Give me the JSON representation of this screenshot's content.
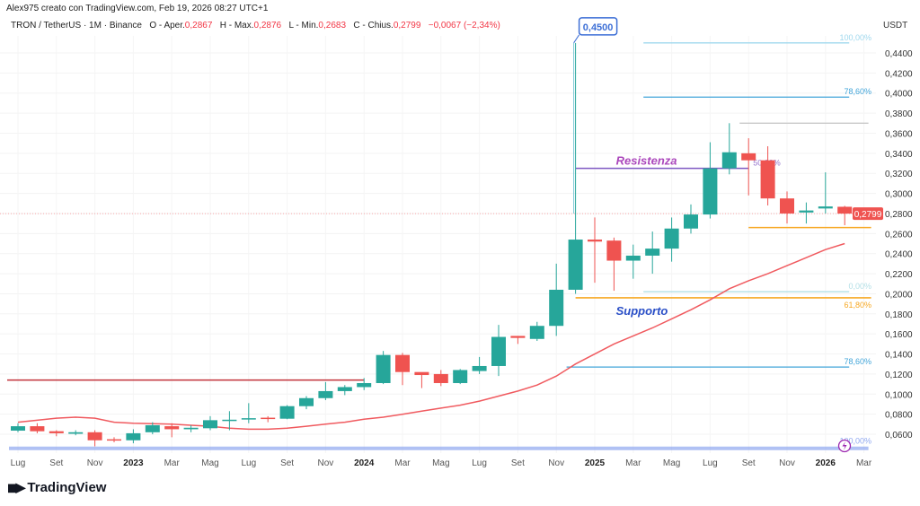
{
  "header": {
    "credit": "Alex975 creato con TradingView.com, Feb 19, 2026 08:27 UTC+1",
    "symbol": "TRON / TetherUS · 1M · Binance",
    "open_label": "O - Aper.",
    "open": "0,2867",
    "high_label": "H - Max.",
    "high": "0,2876",
    "low_label": "L - Min.",
    "low": "0,2683",
    "close_label": "C - Chius.",
    "close": "0,2799",
    "change": "−0,0067 (−2,34%)"
  },
  "logo": "TradingView",
  "colors": {
    "up": "#26a69a",
    "down": "#ef5350",
    "ma": "#f05a5f",
    "resistance": "#7e57c2",
    "support": "#f7a823",
    "fib": "#42a5d9"
  },
  "chart_data": {
    "type": "candlestick",
    "currency": "USDT",
    "ylim": [
      0.045,
      0.455
    ],
    "y_ticks": [
      "0,4400",
      "0,4200",
      "0,4000",
      "0,3800",
      "0,3600",
      "0,3400",
      "0,3200",
      "0,3000",
      "0,2800",
      "0,2600",
      "0,2400",
      "0,2200",
      "0,2000",
      "0,1800",
      "0,1600",
      "0,1400",
      "0,1200",
      "0,1000",
      "0,0800",
      "0,0600"
    ],
    "x_ticks": [
      {
        "label": "Lug",
        "i": 0
      },
      {
        "label": "Set",
        "i": 2
      },
      {
        "label": "Nov",
        "i": 4
      },
      {
        "label": "2023",
        "i": 6,
        "bold": true
      },
      {
        "label": "Mar",
        "i": 8
      },
      {
        "label": "Mag",
        "i": 10
      },
      {
        "label": "Lug",
        "i": 12
      },
      {
        "label": "Set",
        "i": 14
      },
      {
        "label": "Nov",
        "i": 16
      },
      {
        "label": "2024",
        "i": 18,
        "bold": true
      },
      {
        "label": "Mar",
        "i": 20
      },
      {
        "label": "Mag",
        "i": 22
      },
      {
        "label": "Lug",
        "i": 24
      },
      {
        "label": "Set",
        "i": 26
      },
      {
        "label": "Nov",
        "i": 28
      },
      {
        "label": "2025",
        "i": 30,
        "bold": true
      },
      {
        "label": "Mar",
        "i": 32
      },
      {
        "label": "Mag",
        "i": 34
      },
      {
        "label": "Lug",
        "i": 36
      },
      {
        "label": "Set",
        "i": 38
      },
      {
        "label": "Nov",
        "i": 40
      },
      {
        "label": "2026",
        "i": 42,
        "bold": true
      },
      {
        "label": "Mar",
        "i": 44
      }
    ],
    "candles": [
      [
        0.0636,
        0.071,
        0.062,
        0.068
      ],
      [
        0.068,
        0.071,
        0.061,
        0.063
      ],
      [
        0.063,
        0.064,
        0.058,
        0.061
      ],
      [
        0.0605,
        0.064,
        0.059,
        0.062
      ],
      [
        0.062,
        0.064,
        0.048,
        0.054
      ],
      [
        0.055,
        0.057,
        0.052,
        0.054
      ],
      [
        0.054,
        0.065,
        0.051,
        0.061
      ],
      [
        0.062,
        0.072,
        0.06,
        0.069
      ],
      [
        0.068,
        0.071,
        0.057,
        0.065
      ],
      [
        0.065,
        0.069,
        0.062,
        0.0665
      ],
      [
        0.066,
        0.078,
        0.064,
        0.074
      ],
      [
        0.0735,
        0.083,
        0.064,
        0.0745
      ],
      [
        0.075,
        0.091,
        0.071,
        0.076
      ],
      [
        0.0765,
        0.078,
        0.072,
        0.0755
      ],
      [
        0.0755,
        0.089,
        0.075,
        0.088
      ],
      [
        0.088,
        0.098,
        0.085,
        0.096
      ],
      [
        0.096,
        0.112,
        0.094,
        0.103
      ],
      [
        0.103,
        0.109,
        0.099,
        0.107
      ],
      [
        0.107,
        0.116,
        0.104,
        0.111
      ],
      [
        0.111,
        0.143,
        0.11,
        0.139
      ],
      [
        0.139,
        0.141,
        0.109,
        0.122
      ],
      [
        0.122,
        0.121,
        0.106,
        0.119
      ],
      [
        0.12,
        0.124,
        0.108,
        0.111
      ],
      [
        0.111,
        0.125,
        0.11,
        0.124
      ],
      [
        0.123,
        0.137,
        0.12,
        0.128
      ],
      [
        0.128,
        0.169,
        0.118,
        0.157
      ],
      [
        0.158,
        0.158,
        0.15,
        0.156
      ],
      [
        0.155,
        0.172,
        0.153,
        0.168
      ],
      [
        0.168,
        0.23,
        0.158,
        0.204
      ],
      [
        0.204,
        0.45,
        0.2,
        0.254
      ],
      [
        0.254,
        0.276,
        0.211,
        0.252
      ],
      [
        0.253,
        0.256,
        0.203,
        0.233
      ],
      [
        0.233,
        0.249,
        0.215,
        0.238
      ],
      [
        0.238,
        0.262,
        0.22,
        0.245
      ],
      [
        0.245,
        0.276,
        0.232,
        0.265
      ],
      [
        0.265,
        0.289,
        0.26,
        0.279
      ],
      [
        0.279,
        0.351,
        0.275,
        0.325
      ],
      [
        0.325,
        0.37,
        0.319,
        0.341
      ],
      [
        0.34,
        0.355,
        0.298,
        0.333
      ],
      [
        0.333,
        0.347,
        0.288,
        0.295
      ],
      [
        0.295,
        0.302,
        0.27,
        0.28
      ],
      [
        0.281,
        0.291,
        0.27,
        0.283
      ],
      [
        0.285,
        0.321,
        0.28,
        0.287
      ],
      [
        0.2867,
        0.2876,
        0.2683,
        0.2799
      ]
    ],
    "candle_fields": [
      "open",
      "high",
      "low",
      "close"
    ],
    "ma": [
      0.072,
      0.074,
      0.076,
      0.077,
      0.076,
      0.072,
      0.071,
      0.0705,
      0.07,
      0.069,
      0.068,
      0.066,
      0.065,
      0.065,
      0.066,
      0.068,
      0.07,
      0.072,
      0.075,
      0.077,
      0.08,
      0.083,
      0.086,
      0.089,
      0.093,
      0.098,
      0.103,
      0.109,
      0.118,
      0.13,
      0.14,
      0.15,
      0.158,
      0.166,
      0.175,
      0.184,
      0.194,
      0.205,
      0.213,
      0.22,
      0.228,
      0.236,
      0.244,
      0.25
    ],
    "last_price": "0,2799",
    "peak_callout": "0,4500",
    "levels": [
      {
        "label": "Resistenza",
        "value": 0.325,
        "from": 29,
        "to": 38,
        "color": "#7e57c2"
      },
      {
        "label": "Supporto",
        "value": 0.196,
        "from": 29,
        "to": 44,
        "color": "#f7a823"
      },
      {
        "label": "",
        "value": 0.266,
        "from": 38,
        "to": 44,
        "color": "#f7a823"
      },
      {
        "label": "",
        "value": 0.114,
        "from": 0,
        "to": 18,
        "color": "#c2323a"
      }
    ],
    "fib": [
      {
        "label": "100,00%",
        "value": 0.45,
        "from": 33,
        "to": 43,
        "color": "#9fd8ee"
      },
      {
        "label": "78,60%",
        "value": 0.396,
        "from": 33,
        "to": 43,
        "color": "#42a5d9"
      },
      {
        "label": "",
        "value": 0.37,
        "from": 38,
        "to": 44,
        "color": "#c9c9c9"
      },
      {
        "label": "50,00%",
        "value": 0.325,
        "from": 38,
        "to": 38,
        "color": "#9575cd"
      },
      {
        "label": "0,00%",
        "value": 0.202,
        "from": 33,
        "to": 43,
        "color": "#b2dfe6"
      },
      {
        "label": "61,80%",
        "value": 0.196,
        "from": 43,
        "to": 43,
        "color": "#f7a823"
      },
      {
        "label": "78,60%",
        "value": 0.127,
        "from": 29,
        "to": 43,
        "color": "#42a5d9"
      },
      {
        "label": "100,00%",
        "value": 0.046,
        "from": 0,
        "to": 44,
        "color": "#8fa8f0"
      }
    ]
  }
}
